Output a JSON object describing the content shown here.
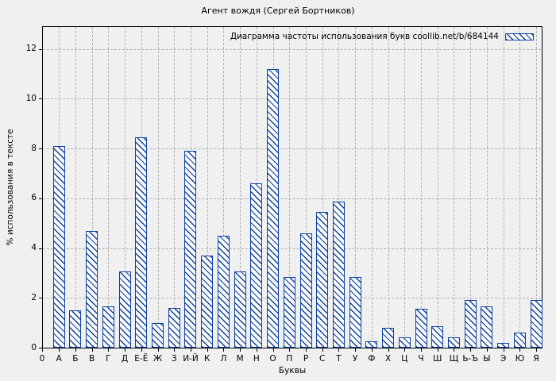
{
  "title": "Агент вождя (Сергей Бортников)",
  "legend_label": "Диаграмма частоты использования букв coollib.net/b/684144",
  "axes": {
    "xlabel": "Буквы",
    "ylabel": "% использования в тексте",
    "origin_label": "0"
  },
  "colors": {
    "bar_border": "#0e419e",
    "bar_fill": "#fafafa",
    "background": "#f0f0f0",
    "grid": "#b0b0b0"
  },
  "chart_data": {
    "type": "bar",
    "title": "Агент вождя (Сергей Бортников)",
    "legend": "Диаграмма частоты использования букв coollib.net/b/684144",
    "xlabel": "Буквы",
    "ylabel": "% использования в тексте",
    "ylim": [
      0,
      12.9
    ],
    "yticks": [
      0,
      2,
      4,
      6,
      8,
      10,
      12
    ],
    "grid": true,
    "legend_position": "top-right-inside",
    "bar_style": "blue diagonal hatch",
    "categories": [
      "А",
      "Б",
      "В",
      "Г",
      "Д",
      "Е-Ё",
      "Ж",
      "З",
      "И-Й",
      "К",
      "Л",
      "М",
      "Н",
      "О",
      "П",
      "Р",
      "С",
      "Т",
      "У",
      "Ф",
      "Х",
      "Ц",
      "Ч",
      "Ш",
      "Щ",
      "Ь-Ъ",
      "Ы",
      "Э",
      "Ю",
      "Я"
    ],
    "values": [
      8.1,
      1.5,
      4.7,
      1.65,
      3.05,
      8.45,
      1.0,
      1.6,
      7.9,
      3.7,
      4.5,
      3.05,
      6.6,
      11.2,
      2.85,
      4.6,
      5.45,
      5.85,
      2.85,
      0.25,
      0.8,
      0.4,
      1.55,
      0.85,
      0.4,
      1.9,
      1.65,
      0.2,
      0.6,
      1.9
    ]
  }
}
